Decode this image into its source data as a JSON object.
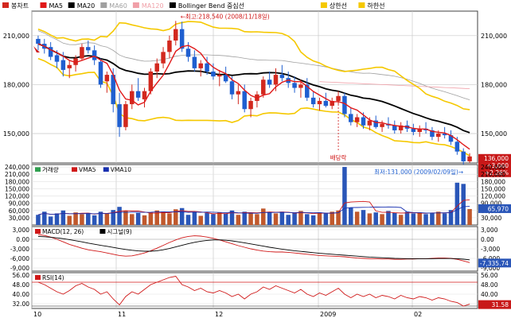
{
  "legend": {
    "price": [
      {
        "label": "봉차트",
        "color": "#d2281e"
      },
      {
        "label": "MA5",
        "color": "#e01818"
      },
      {
        "label": "MA20",
        "color": "#000000"
      },
      {
        "label": "MA60",
        "color": "#a0a0a0"
      },
      {
        "label": "MA120",
        "color": "#f0a0a8"
      },
      {
        "label": "Bollinger Bend 중심선",
        "color": "#000000"
      },
      {
        "label": "상한선",
        "color": "#f5c800"
      },
      {
        "label": "하한선",
        "color": "#f5c800"
      }
    ],
    "volume": [
      {
        "label": "거래량",
        "color": "#30a050"
      },
      {
        "label": "VMA5",
        "color": "#d01818"
      },
      {
        "label": "VMA10",
        "color": "#1830b0"
      }
    ],
    "macd": [
      {
        "label": "MACD(12, 26)",
        "color": "#d01818"
      },
      {
        "label": "시그널(9)",
        "color": "#000000"
      }
    ],
    "rsi": [
      {
        "label": "RSI(14)",
        "color": "#d01818"
      }
    ]
  },
  "annotations": {
    "high": "←최고:218,540 (2008/11/18일)",
    "low": "최저:131,000 (2009/02/09일)→",
    "dividend": "배당락"
  },
  "price_box": {
    "value": "136,000",
    "change": "+3,000",
    "pct": "+2.26%"
  },
  "vol_box": "65,970",
  "macd_box": "-7,335.74",
  "rsi_box": "31.58",
  "price_axis": {
    "labels": [
      "210,000",
      "180,000",
      "150,000"
    ]
  },
  "volume_axis": {
    "labels": [
      "240,000",
      "210,000",
      "180,000",
      "150,000",
      "120,000",
      "90,000",
      "60,000",
      "30,000"
    ]
  },
  "macd_axis": {
    "labels": [
      "3,000",
      "0.00",
      "-3,000",
      "-6,000",
      "-9,000"
    ]
  },
  "rsi_axis": {
    "labels": [
      "56.00",
      "48.00",
      "40.00",
      "32.00"
    ]
  },
  "x_axis": {
    "labels": [
      "10",
      "11",
      "12",
      "2009",
      "02"
    ]
  },
  "colors": {
    "up": "#d2281e",
    "down": "#1f5fd0",
    "grid": "#c8c8c8",
    "frame": "#404040",
    "boxbg": "#c81818"
  },
  "chart_data": [
    {
      "type": "candlestick",
      "title": "",
      "ylim": [
        132000,
        225000
      ],
      "highest": {
        "value": 218540,
        "date": "2008/11/18"
      },
      "lowest": {
        "value": 131000,
        "date": "2009/02/09"
      },
      "last": 136000,
      "ohlc": [
        [
          208000,
          210000,
          201000,
          205000
        ],
        [
          205000,
          208000,
          199000,
          202000
        ],
        [
          203000,
          206000,
          195000,
          197000
        ],
        [
          198000,
          201000,
          190000,
          194000
        ],
        [
          195000,
          200000,
          185000,
          189000
        ],
        [
          190000,
          195000,
          184000,
          192000
        ],
        [
          192000,
          198000,
          188000,
          196000
        ],
        [
          196000,
          205000,
          195000,
          203000
        ],
        [
          203000,
          207000,
          199000,
          201000
        ],
        [
          201000,
          204000,
          192000,
          195000
        ],
        [
          194000,
          196000,
          178000,
          180000
        ],
        [
          182000,
          188000,
          175000,
          186000
        ],
        [
          186000,
          190000,
          163000,
          168000
        ],
        [
          168000,
          175000,
          148000,
          154000
        ],
        [
          154000,
          170000,
          152000,
          168000
        ],
        [
          168000,
          180000,
          165000,
          176000
        ],
        [
          176000,
          184000,
          170000,
          172000
        ],
        [
          171000,
          178000,
          166000,
          176000
        ],
        [
          176000,
          190000,
          174000,
          188000
        ],
        [
          188000,
          196000,
          184000,
          193000
        ],
        [
          193000,
          203000,
          190000,
          200000
        ],
        [
          200000,
          210000,
          196000,
          207000
        ],
        [
          207000,
          219000,
          204000,
          214000
        ],
        [
          214000,
          218540,
          200000,
          202000
        ],
        [
          202000,
          206000,
          194000,
          197000
        ],
        [
          197000,
          201000,
          188000,
          190000
        ],
        [
          190000,
          195000,
          185000,
          193000
        ],
        [
          193000,
          197000,
          186000,
          188000
        ],
        [
          188000,
          193000,
          183000,
          185000
        ],
        [
          185000,
          189000,
          179000,
          186000
        ],
        [
          186000,
          191000,
          181000,
          182000
        ],
        [
          182000,
          185000,
          171000,
          174000
        ],
        [
          174000,
          180000,
          168000,
          176000
        ],
        [
          176000,
          180000,
          163000,
          165000
        ],
        [
          165000,
          172000,
          160000,
          170000
        ],
        [
          170000,
          176000,
          166000,
          174000
        ],
        [
          174000,
          185000,
          172000,
          183000
        ],
        [
          183000,
          188000,
          178000,
          180000
        ],
        [
          180000,
          190000,
          176000,
          186000
        ],
        [
          186000,
          192000,
          182000,
          184000
        ],
        [
          184000,
          188000,
          178000,
          181000
        ],
        [
          181000,
          185000,
          175000,
          178000
        ],
        [
          178000,
          183000,
          172000,
          180000
        ],
        [
          180000,
          184000,
          170000,
          172000
        ],
        [
          172000,
          176000,
          166000,
          168000
        ],
        [
          168000,
          172000,
          164000,
          170000
        ],
        [
          170000,
          175000,
          166000,
          167000
        ],
        [
          167000,
          172000,
          165000,
          170000
        ],
        [
          170000,
          176000,
          168000,
          173000
        ],
        [
          173000,
          175000,
          160000,
          162000
        ],
        [
          162000,
          166000,
          155000,
          157000
        ],
        [
          157000,
          162000,
          154000,
          160000
        ],
        [
          160000,
          163000,
          153000,
          155000
        ],
        [
          155000,
          160000,
          152000,
          158000
        ],
        [
          158000,
          161000,
          153000,
          154000
        ],
        [
          154000,
          158000,
          151000,
          156000
        ],
        [
          156000,
          160000,
          153000,
          155000
        ],
        [
          155000,
          158000,
          150000,
          152000
        ],
        [
          152000,
          157000,
          150000,
          155000
        ],
        [
          155000,
          158000,
          151000,
          153000
        ],
        [
          153000,
          156000,
          149000,
          151000
        ],
        [
          151000,
          155000,
          148000,
          153000
        ],
        [
          153000,
          157000,
          150000,
          152000
        ],
        [
          152000,
          154000,
          146000,
          148000
        ],
        [
          148000,
          152000,
          145000,
          150000
        ],
        [
          150000,
          154000,
          147000,
          149000
        ],
        [
          149000,
          152000,
          143000,
          145000
        ],
        [
          145000,
          148000,
          137000,
          139000
        ],
        [
          139000,
          141000,
          131000,
          133000
        ],
        [
          133000,
          138000,
          132000,
          136000
        ]
      ]
    },
    {
      "type": "bar",
      "title": "거래량",
      "ylim": [
        0,
        250000
      ],
      "values": [
        42000,
        55000,
        35000,
        48000,
        60000,
        38000,
        52000,
        45000,
        50000,
        40000,
        55000,
        48000,
        62000,
        75000,
        58000,
        45000,
        50000,
        40000,
        52000,
        60000,
        55000,
        48000,
        65000,
        70000,
        42000,
        55000,
        38000,
        50000,
        45000,
        52000,
        48000,
        60000,
        42000,
        55000,
        50000,
        45000,
        68000,
        52000,
        48000,
        55000,
        42000,
        50000,
        58000,
        45000,
        40000,
        52000,
        48000,
        55000,
        60000,
        240000,
        72000,
        55000,
        62000,
        48000,
        52000,
        45000,
        58000,
        50000,
        42000,
        55000,
        48000,
        52000,
        45000,
        50000,
        55000,
        48000,
        62000,
        175000,
        170000,
        65970
      ]
    },
    {
      "type": "line",
      "title": "MACD",
      "ylim": [
        -10000,
        4000
      ],
      "series": [
        {
          "name": "MACD(12, 26)",
          "values": [
            1500,
            1200,
            700,
            0,
            -800,
            -1600,
            -2200,
            -2800,
            -3300,
            -3600,
            -3900,
            -4300,
            -4700,
            -5100,
            -5300,
            -5200,
            -4800,
            -4300,
            -3600,
            -2800,
            -1900,
            -1000,
            -200,
            500,
            900,
            1100,
            1000,
            700,
            300,
            -200,
            -800,
            -1400,
            -2000,
            -2500,
            -3000,
            -3400,
            -3700,
            -3900,
            -4000,
            -4000,
            -4100,
            -4300,
            -4500,
            -4700,
            -4900,
            -5100,
            -5200,
            -5300,
            -5400,
            -5500,
            -5700,
            -5900,
            -6000,
            -6100,
            -6100,
            -6200,
            -6200,
            -6300,
            -6300,
            -6200,
            -6200,
            -6100,
            -6100,
            -6000,
            -5900,
            -5900,
            -6000,
            -6300,
            -6800,
            -7336
          ]
        },
        {
          "name": "시그널(9)",
          "values": [
            900,
            800,
            650,
            450,
            200,
            -100,
            -450,
            -800,
            -1200,
            -1550,
            -1900,
            -2200,
            -2550,
            -2900,
            -3200,
            -3450,
            -3650,
            -3750,
            -3750,
            -3600,
            -3300,
            -2900,
            -2400,
            -1900,
            -1400,
            -950,
            -600,
            -350,
            -200,
            -200,
            -300,
            -500,
            -800,
            -1100,
            -1450,
            -1800,
            -2150,
            -2500,
            -2800,
            -3100,
            -3350,
            -3600,
            -3800,
            -4000,
            -4200,
            -4400,
            -4550,
            -4700,
            -4850,
            -5000,
            -5150,
            -5300,
            -5450,
            -5600,
            -5700,
            -5800,
            -5900,
            -6000,
            -6050,
            -6100,
            -6100,
            -6100,
            -6100,
            -6100,
            -6050,
            -6050,
            -6050,
            -6100,
            -6250,
            -6450
          ]
        }
      ]
    },
    {
      "type": "line",
      "title": "RSI(14)",
      "ylim": [
        28,
        58
      ],
      "series": [
        {
          "name": "RSI(14)",
          "values": [
            50,
            48,
            45,
            42,
            40,
            43,
            47,
            49,
            46,
            44,
            40,
            42,
            36,
            31,
            38,
            42,
            40,
            44,
            48,
            50,
            52,
            54,
            55,
            48,
            46,
            43,
            45,
            42,
            41,
            43,
            41,
            38,
            40,
            36,
            40,
            42,
            46,
            44,
            47,
            45,
            43,
            41,
            44,
            40,
            38,
            41,
            39,
            42,
            45,
            40,
            37,
            40,
            38,
            40,
            37,
            39,
            38,
            36,
            39,
            37,
            36,
            38,
            37,
            35,
            37,
            36,
            34,
            33,
            30,
            31.58
          ]
        }
      ]
    }
  ]
}
